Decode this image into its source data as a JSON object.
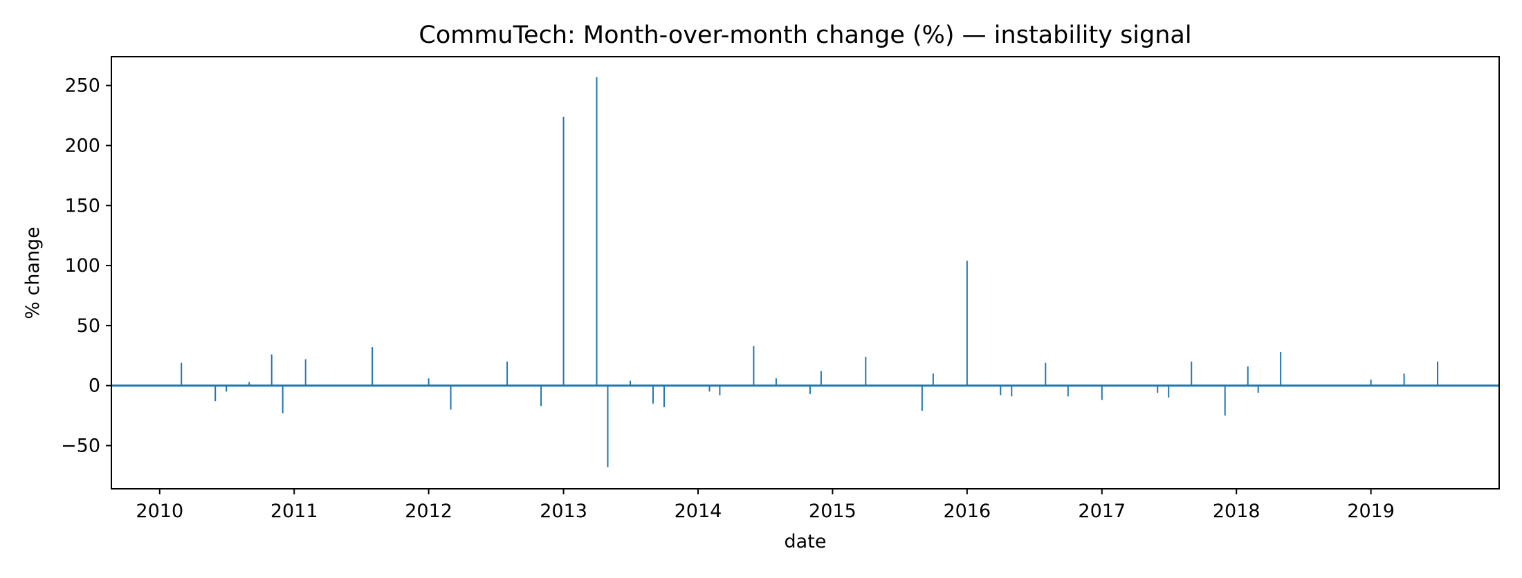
{
  "chart_data": {
    "type": "bar",
    "title": "CommuTech: Month-over-month change (%) — instability signal",
    "xlabel": "date",
    "ylabel": "% change",
    "ylim": [
      -86,
      274
    ],
    "xlim": [
      "2009-08-23",
      "2019-12-15"
    ],
    "grid": false,
    "color": "#1f77b4",
    "x_ticks": [
      "2010",
      "2011",
      "2012",
      "2013",
      "2014",
      "2015",
      "2016",
      "2017",
      "2018",
      "2019"
    ],
    "y_ticks": [
      "250",
      "200",
      "150",
      "100",
      "50",
      "0",
      "−50"
    ],
    "series": [
      {
        "x": [
          "2010-03-01",
          "2010-06-01",
          "2010-07-01",
          "2010-09-01",
          "2010-11-01",
          "2010-12-01",
          "2011-02-01",
          "2011-08-01",
          "2012-01-01",
          "2012-03-01",
          "2012-08-01",
          "2012-11-01",
          "2013-01-01",
          "2013-04-01",
          "2013-05-01",
          "2013-07-01",
          "2013-09-01",
          "2013-10-01",
          "2014-02-01",
          "2014-03-01",
          "2014-06-01",
          "2014-08-01",
          "2014-11-01",
          "2014-12-01",
          "2015-04-01",
          "2015-09-01",
          "2015-10-01",
          "2016-01-01",
          "2016-04-01",
          "2016-05-01",
          "2016-08-01",
          "2016-10-01",
          "2017-01-01",
          "2017-06-01",
          "2017-07-01",
          "2017-09-01",
          "2017-12-01",
          "2018-02-01",
          "2018-03-01",
          "2018-05-01",
          "2019-01-01",
          "2019-04-01",
          "2019-07-01"
        ],
        "values": [
          19,
          -13,
          -5,
          3,
          26,
          -23,
          22,
          32,
          6,
          -20,
          20,
          -17,
          224,
          257,
          -68,
          4,
          -15,
          -18,
          -5,
          -8,
          33,
          6,
          -7,
          12,
          24,
          -21,
          10,
          104,
          -8,
          -9,
          19,
          -9,
          -12,
          -6,
          -10,
          20,
          -25,
          16,
          -6,
          28,
          5,
          10,
          20
        ]
      }
    ]
  }
}
